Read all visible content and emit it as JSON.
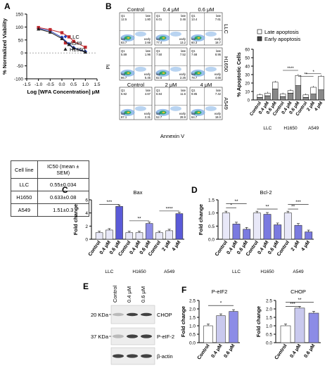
{
  "panels": {
    "A": "A",
    "B": "B",
    "C": "C",
    "D": "D",
    "E": "E",
    "F": "F"
  },
  "ic50_table": {
    "headers": [
      "Cell line",
      "IC50 (mean ± SEM)"
    ],
    "rows": [
      [
        "LLC",
        "0.55±0.034"
      ],
      [
        "H1650",
        "0.633±0.08"
      ],
      [
        "A549",
        "1.51±0.3"
      ]
    ]
  },
  "colors": {
    "llc": "#1f3fbf",
    "a549": "#c0282d",
    "h1650": "#222222",
    "bar_blue": "#3b3bd0",
    "bar_light": "#c9c9ee",
    "bar_red": "#c0282d"
  },
  "chart_data": [
    {
      "type": "line",
      "panel": "A",
      "ylabel": "% Normalized Viability",
      "xlabel": "Log [WFA Concentration] μM",
      "xlim": [
        -1.5,
        1.5
      ],
      "ylim": [
        -100,
        150
      ],
      "xticks": [
        "-1.5",
        "-1.0",
        "-0.5",
        "0.0",
        "0.5",
        "1.0",
        "1.5"
      ],
      "yticks": [
        "-100",
        "-50",
        "0",
        "50",
        "100",
        "150"
      ],
      "legend_position": "top-right",
      "x": [
        -1.0,
        -0.5,
        0.0,
        0.3,
        0.5,
        1.0
      ],
      "series": [
        {
          "name": "LLC",
          "values": [
            95,
            85,
            60,
            35,
            20,
            5
          ]
        },
        {
          "name": "A549",
          "values": [
            98,
            90,
            78,
            62,
            45,
            22
          ]
        },
        {
          "name": "H1650",
          "values": [
            92,
            80,
            55,
            32,
            18,
            3
          ]
        }
      ]
    },
    {
      "type": "scatter",
      "panel": "B",
      "subtype": "flow-cytometry-grid",
      "xlabel": "Annexin V",
      "ylabel": "PI",
      "columns": [
        "Control",
        "0.4 μM",
        "0.6 μM",
        "Control",
        "2 μM",
        "4 μM"
      ],
      "row_labels": [
        "LLC",
        "H1650",
        "A549"
      ],
      "quadrant_labels": [
        "Q1",
        "late",
        "live",
        "early"
      ],
      "quadrant_values": [
        [
          "12.5",
          "1.80",
          "83.7",
          "2.66"
        ],
        [
          "6.01",
          "3.46",
          "77.4",
          "13.2"
        ],
        [
          "13.4",
          "7.61",
          "60.3",
          "18.7"
        ],
        [
          "5.89",
          "1.96",
          "86.7",
          "5.45"
        ],
        [
          "7.50",
          "7.52",
          "82.6",
          "2.26"
        ],
        [
          "7.68",
          "8.95",
          "78.7",
          "4.66"
        ],
        [
          "5.92",
          "4.67",
          "87.1",
          "2.31"
        ],
        [
          "6.84",
          "11.6",
          "52.7",
          "28.9"
        ],
        [
          "9.85",
          "7.42",
          "64.7",
          "18.0"
        ]
      ]
    },
    {
      "type": "bar",
      "panel": "B-right",
      "stacked": true,
      "ylabel": "% Apoptotic Cells",
      "ylim": [
        0,
        60
      ],
      "yticks": [
        "0",
        "10",
        "20",
        "30",
        "40",
        "50",
        "60"
      ],
      "categories": [
        "Control",
        "0.4 μM",
        "0.6 μM",
        "Control",
        "0.4 μM",
        "0.6 μM",
        "Control",
        "2 μM",
        "4 μM"
      ],
      "groups": [
        "LLC",
        "H1650",
        "A549"
      ],
      "series": [
        {
          "name": "Late apoptosis",
          "values": [
            3,
            3,
            8,
            3,
            3,
            12,
            3,
            8,
            16
          ]
        },
        {
          "name": "Early apoptosis",
          "values": [
            3,
            5,
            13,
            4,
            8,
            17,
            3,
            7,
            12
          ]
        }
      ],
      "significance": [
        "****",
        "**",
        "*"
      ]
    },
    {
      "type": "bar",
      "panel": "C",
      "title": "Bax",
      "ylabel": "Fold change",
      "ylim": [
        0,
        6
      ],
      "yticks": [
        "0",
        "2",
        "4",
        "6"
      ],
      "categories": [
        "Control",
        "0.4 μM",
        "0.6 μM",
        "Control",
        "0.4 μM",
        "0.6 μM",
        "Control",
        "2 μM",
        "4 μM"
      ],
      "groups": [
        "LLC",
        "H1650",
        "A549"
      ],
      "values": [
        1.0,
        1.4,
        5.0,
        1.0,
        1.0,
        2.4,
        1.0,
        1.3,
        3.9
      ],
      "significance": [
        "***",
        "**",
        "****"
      ]
    },
    {
      "type": "bar",
      "panel": "D",
      "title": "Bcl-2",
      "ylabel": "Fold change",
      "ylim": [
        0,
        1.5
      ],
      "yticks": [
        "0.0",
        "0.5",
        "1.0",
        "1.5"
      ],
      "categories": [
        "Control",
        "0.4 μM",
        "0.6 μM",
        "Control",
        "0.4 μM",
        "0.6 μM",
        "Control",
        "2 μM",
        "4 μM"
      ],
      "groups": [
        "LLC",
        "H1650",
        "A549"
      ],
      "values": [
        1.0,
        0.58,
        0.38,
        1.0,
        0.95,
        0.55,
        1.0,
        0.53,
        0.28
      ],
      "significance": [
        "*",
        "**",
        "**",
        "**",
        "***"
      ]
    },
    {
      "type": "bar",
      "panel": "F-left",
      "title": "P-eIF2",
      "ylabel": "Fold change",
      "ylim": [
        0,
        2.5
      ],
      "yticks": [
        "0.0",
        "0.5",
        "1.0",
        "1.5",
        "2.0",
        "2.5"
      ],
      "categories": [
        "Control",
        "0.4 μM",
        "0.6 μM"
      ],
      "values": [
        1.0,
        1.6,
        1.85
      ],
      "significance": [
        "*"
      ]
    },
    {
      "type": "bar",
      "panel": "F-right",
      "title": "CHOP",
      "ylabel": "Fold change",
      "ylim": [
        0,
        2.5
      ],
      "yticks": [
        "0.0",
        "0.5",
        "1.0",
        "1.5",
        "2.0",
        "2.5"
      ],
      "categories": [
        "Control",
        "0.4 μM",
        "0.6 μM"
      ],
      "values": [
        1.0,
        2.05,
        1.75
      ],
      "significance": [
        "***",
        "**"
      ]
    }
  ],
  "western_blot": {
    "lanes": [
      "Control",
      "0.4 μM",
      "0.6 μM"
    ],
    "bands": [
      {
        "mw": "20 KDa",
        "name": "CHOP"
      },
      {
        "mw": "37 KDa",
        "name": "P-eIF-2"
      },
      {
        "mw": "",
        "name": "β-actin"
      }
    ]
  }
}
